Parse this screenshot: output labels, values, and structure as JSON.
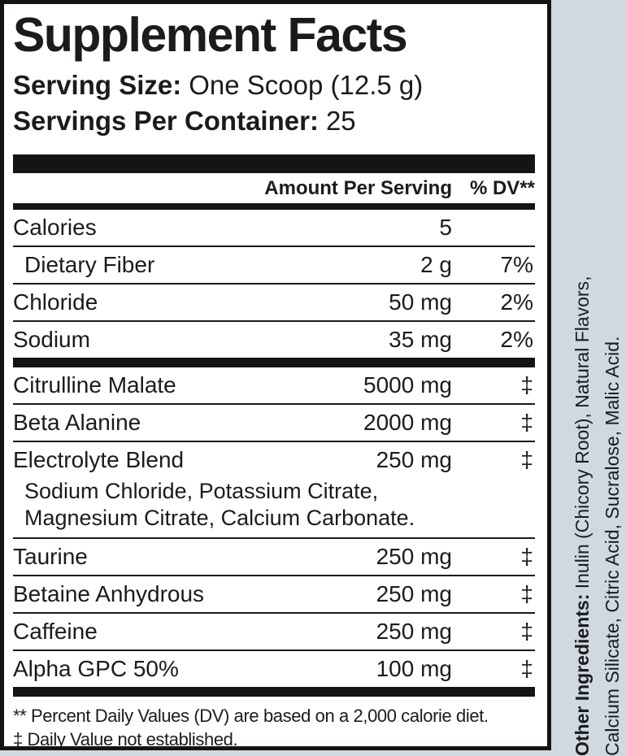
{
  "colors": {
    "page_bg": "#cfd9e2",
    "panel_bg": "#ffffff",
    "ink": "#1c1b1a",
    "bar": "#161412"
  },
  "label": {
    "title": "Supplement Facts",
    "serving_size_label": "Serving Size:",
    "serving_size_value": "One Scoop (12.5 g)",
    "servings_label": "Servings Per Container:",
    "servings_value": "25",
    "columns": {
      "amount": "Amount Per Serving",
      "dv": "% DV**"
    },
    "sections": [
      {
        "rows": [
          {
            "name": "Calories",
            "amount": "5",
            "dv": ""
          },
          {
            "name": "Dietary Fiber",
            "amount": "2 g",
            "dv": "7%",
            "indent": true
          },
          {
            "name": "Chloride",
            "amount": "50 mg",
            "dv": "2%"
          },
          {
            "name": "Sodium",
            "amount": "35 mg",
            "dv": "2%"
          }
        ]
      },
      {
        "rows": [
          {
            "name": "Citrulline Malate",
            "amount": "5000 mg",
            "dv": "‡"
          },
          {
            "name": "Beta Alanine",
            "amount": "2000 mg",
            "dv": "‡"
          },
          {
            "name": "Electrolyte Blend",
            "amount": "250 mg",
            "dv": "‡",
            "sub": [
              "Sodium Chloride, Potassium Citrate,",
              "Magnesium Citrate, Calcium Carbonate."
            ]
          },
          {
            "name": "Taurine",
            "amount": "250 mg",
            "dv": "‡"
          },
          {
            "name": "Betaine Anhydrous",
            "amount": "250 mg",
            "dv": "‡"
          },
          {
            "name": "Caffeine",
            "amount": "250 mg",
            "dv": "‡"
          },
          {
            "name": "Alpha GPC 50%",
            "amount": "100 mg",
            "dv": "‡"
          }
        ]
      }
    ],
    "footnotes": [
      "** Percent Daily Values (DV) are based on a 2,000 calorie diet.",
      "‡ Daily Value not established."
    ]
  },
  "sidebar": {
    "line1_bold": "Other Ingredients:",
    "line1_rest": " Inulin (Chicory Root), Natural Flavors,",
    "line2": "Calcium Silicate, Citric Acid, Sucralose, Malic Acid."
  }
}
